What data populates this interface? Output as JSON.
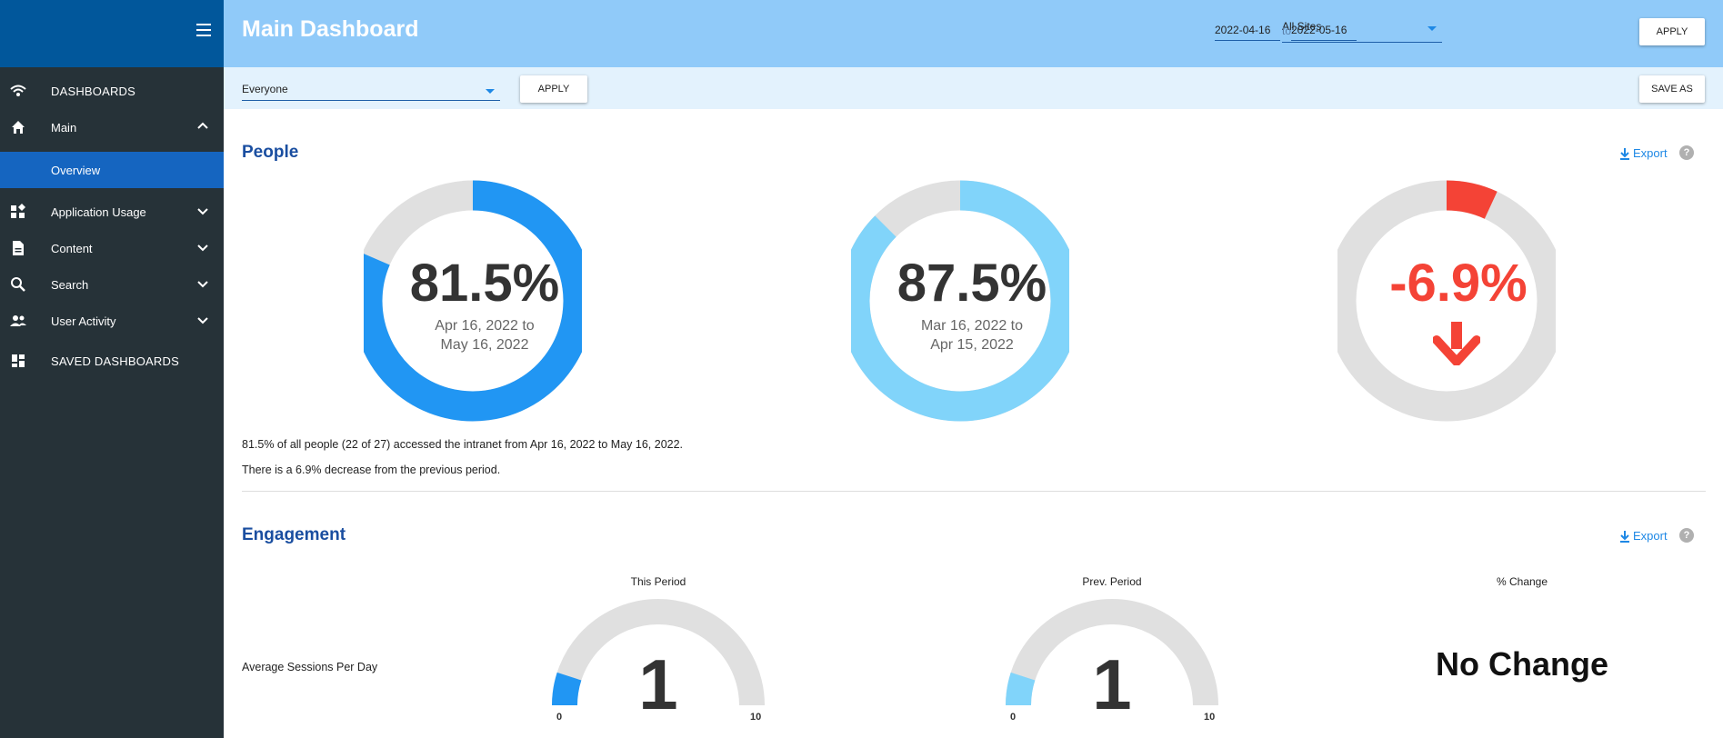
{
  "sidebar": {
    "items": [
      {
        "label": "DASHBOARDS",
        "icon": "dashboards-signal-icon"
      },
      {
        "label": "Main",
        "icon": "home-icon",
        "expanded": true
      },
      {
        "label": "Overview",
        "active": true
      },
      {
        "label": "Application Usage",
        "icon": "widgets-icon"
      },
      {
        "label": "Content",
        "icon": "document-icon"
      },
      {
        "label": "Search",
        "icon": "search-icon"
      },
      {
        "label": "User Activity",
        "icon": "people-icon"
      },
      {
        "label": "SAVED DASHBOARDS",
        "icon": "dashboard-grid-icon"
      }
    ]
  },
  "header": {
    "title": "Main Dashboard",
    "site_select": "All Sites",
    "date_from": "2022-04-16",
    "to_label": "to",
    "date_to": "2022-05-16",
    "apply_label": "APPLY"
  },
  "filterbar": {
    "audience": "Everyone",
    "apply_label": "APPLY",
    "save_as_label": "SAVE AS"
  },
  "people": {
    "title": "People",
    "export_label": "Export",
    "help": "?",
    "current": {
      "value_text": "81.5%",
      "fraction": 0.815,
      "range_line1": "Apr 16, 2022 to",
      "range_line2": "May 16, 2022"
    },
    "previous": {
      "value_text": "87.5%",
      "fraction": 0.875,
      "range_line1": "Mar 16, 2022 to",
      "range_line2": "Apr 15, 2022"
    },
    "change": {
      "value_text": "-6.9%",
      "fraction": 0.069
    },
    "desc1": "81.5% of all people (22 of 27) accessed the intranet from Apr 16, 2022 to May 16, 2022.",
    "desc2": "There is a 6.9% decrease from the previous period."
  },
  "engagement": {
    "title": "Engagement",
    "export_label": "Export",
    "help": "?",
    "col_this": "This Period",
    "col_prev": "Prev. Period",
    "col_change": "% Change",
    "metric_label": "Average Sessions Per Day",
    "this_value": "1",
    "prev_value": "1",
    "gauge_min": "0",
    "gauge_max": "10",
    "change_text": "No Change"
  },
  "colors": {
    "sidebar_bg": "#263238",
    "sidebar_top": "#01579b",
    "active_item": "#1565c0",
    "header_bg": "#90caf9",
    "filterbar_bg": "#e3f2fd",
    "current_series": "#2196f3",
    "previous_series": "#81d4fa",
    "negative": "#f44336",
    "track": "#e0e0e0"
  }
}
